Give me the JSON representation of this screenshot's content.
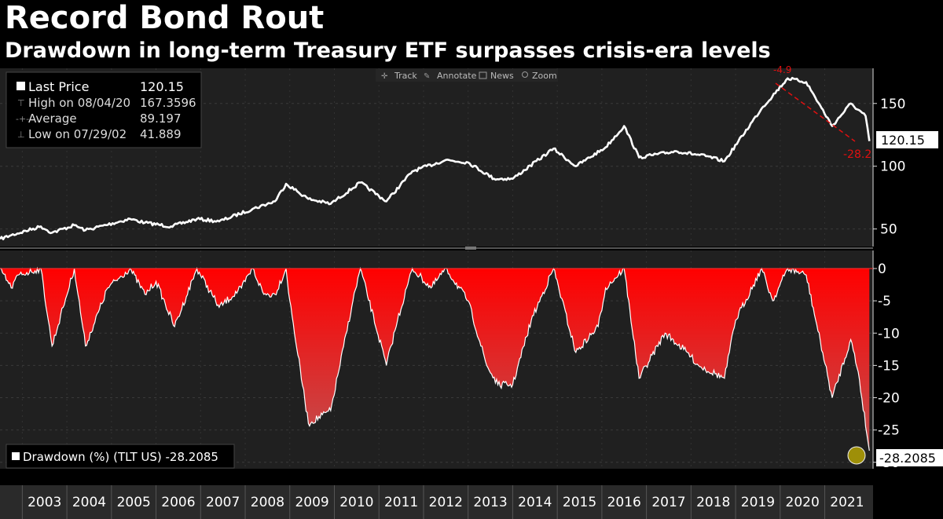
{
  "header": {
    "title": "Record Bond Rout",
    "subtitle": "Drawdown in long-term Treasury ETF surpasses crisis-era levels"
  },
  "toolbar": [
    {
      "icon": "crosshair-icon",
      "label": "Track"
    },
    {
      "icon": "pencil-icon",
      "label": "Annotate"
    },
    {
      "icon": "news-icon",
      "label": "News"
    },
    {
      "icon": "magnifier-icon",
      "label": "Zoom"
    }
  ],
  "legend_top": {
    "rows": [
      {
        "label": "Last Price",
        "value": "120.15"
      },
      {
        "label": "High on 08/04/20",
        "value": "167.3596"
      },
      {
        "label": "Average",
        "value": "89.197"
      },
      {
        "label": "Low on 07/29/02",
        "value": "41.889"
      }
    ]
  },
  "legend_bottom": {
    "text": "Drawdown (%) (TLT US) -28.2085"
  },
  "annotations": {
    "last_price_tag": "120.15",
    "drawdown_tag": "-28.2085",
    "trend_label_bottom": "-28.2",
    "trend_label_top": "-4.9"
  },
  "colors": {
    "background": "#000000",
    "price_line": "#ffffff",
    "drawdown_fill": "#ff0000",
    "trend_line": "#e01010",
    "marker": "#c8b400"
  },
  "chart_data": [
    {
      "type": "line",
      "series": [
        {
          "name": "Last Price",
          "x": [
            "2002-07",
            "2002-10",
            "2003-06",
            "2003-09",
            "2004-03",
            "2004-06",
            "2005-06",
            "2005-10",
            "2006-05",
            "2006-12",
            "2007-06",
            "2008-03",
            "2008-09",
            "2008-12",
            "2009-06",
            "2009-12",
            "2010-08",
            "2011-03",
            "2011-10",
            "2012-07",
            "2013-01",
            "2013-08",
            "2014-01",
            "2014-12",
            "2015-06",
            "2016-02",
            "2016-07",
            "2016-11",
            "2017-09",
            "2018-05",
            "2018-10",
            "2019-08",
            "2020-03",
            "2020-08",
            "2021-03",
            "2021-08",
            "2021-12",
            "2022-01"
          ],
          "values": [
            42,
            45,
            52,
            47,
            53,
            49,
            58,
            55,
            52,
            58,
            56,
            66,
            72,
            86,
            74,
            70,
            87,
            72,
            96,
            105,
            103,
            90,
            90,
            114,
            100,
            115,
            132,
            107,
            112,
            108,
            104,
            146,
            170,
            167,
            132,
            150,
            140,
            120
          ]
        }
      ],
      "yticks": [
        50,
        100,
        150
      ],
      "ylim": [
        36,
        178
      ],
      "xlim": [
        "2002-07",
        "2022-02"
      ]
    },
    {
      "type": "area",
      "series": [
        {
          "name": "Drawdown (%) (TLT US)",
          "x": [
            "2002-07",
            "2002-10",
            "2002-12",
            "2003-06",
            "2003-09",
            "2003-12",
            "2004-03",
            "2004-06",
            "2004-12",
            "2005-06",
            "2005-10",
            "2006-01",
            "2006-06",
            "2006-12",
            "2007-06",
            "2007-12",
            "2008-03",
            "2008-06",
            "2008-09",
            "2008-12",
            "2009-01",
            "2009-06",
            "2009-12",
            "2010-06",
            "2010-08",
            "2011-03",
            "2011-06",
            "2011-10",
            "2012-03",
            "2012-07",
            "2013-01",
            "2013-06",
            "2013-09",
            "2014-01",
            "2014-06",
            "2014-12",
            "2015-06",
            "2015-12",
            "2016-02",
            "2016-07",
            "2016-11",
            "2017-06",
            "2017-12",
            "2018-03",
            "2018-10",
            "2019-01",
            "2019-08",
            "2019-11",
            "2020-03",
            "2020-08",
            "2021-03",
            "2021-08",
            "2021-10",
            "2022-01"
          ],
          "values": [
            0,
            -3,
            -1,
            0,
            -12,
            -6,
            0,
            -12,
            -3,
            0,
            -4,
            -2,
            -9,
            0,
            -6,
            -3,
            0,
            -4,
            -4,
            0,
            -5,
            -24,
            -22,
            -5,
            0,
            -15,
            -8,
            0,
            -3,
            0,
            -5,
            -15,
            -18,
            -18,
            -8,
            0,
            -13,
            -9,
            -3,
            0,
            -17,
            -10,
            -13,
            -15,
            -17,
            -8,
            0,
            -5,
            0,
            -1,
            -20,
            -11,
            -16,
            -28.2
          ]
        }
      ],
      "yticks": [
        0,
        -5,
        -10,
        -15,
        -20,
        -25,
        -30
      ],
      "ylim": [
        -31,
        0
      ],
      "xlim": [
        "2002-07",
        "2022-02"
      ]
    }
  ],
  "x_axis": {
    "years": [
      "2003",
      "2004",
      "2005",
      "2006",
      "2007",
      "2008",
      "2009",
      "2010",
      "2011",
      "2012",
      "2013",
      "2014",
      "2015",
      "2016",
      "2017",
      "2018",
      "2019",
      "2020",
      "2021"
    ]
  }
}
